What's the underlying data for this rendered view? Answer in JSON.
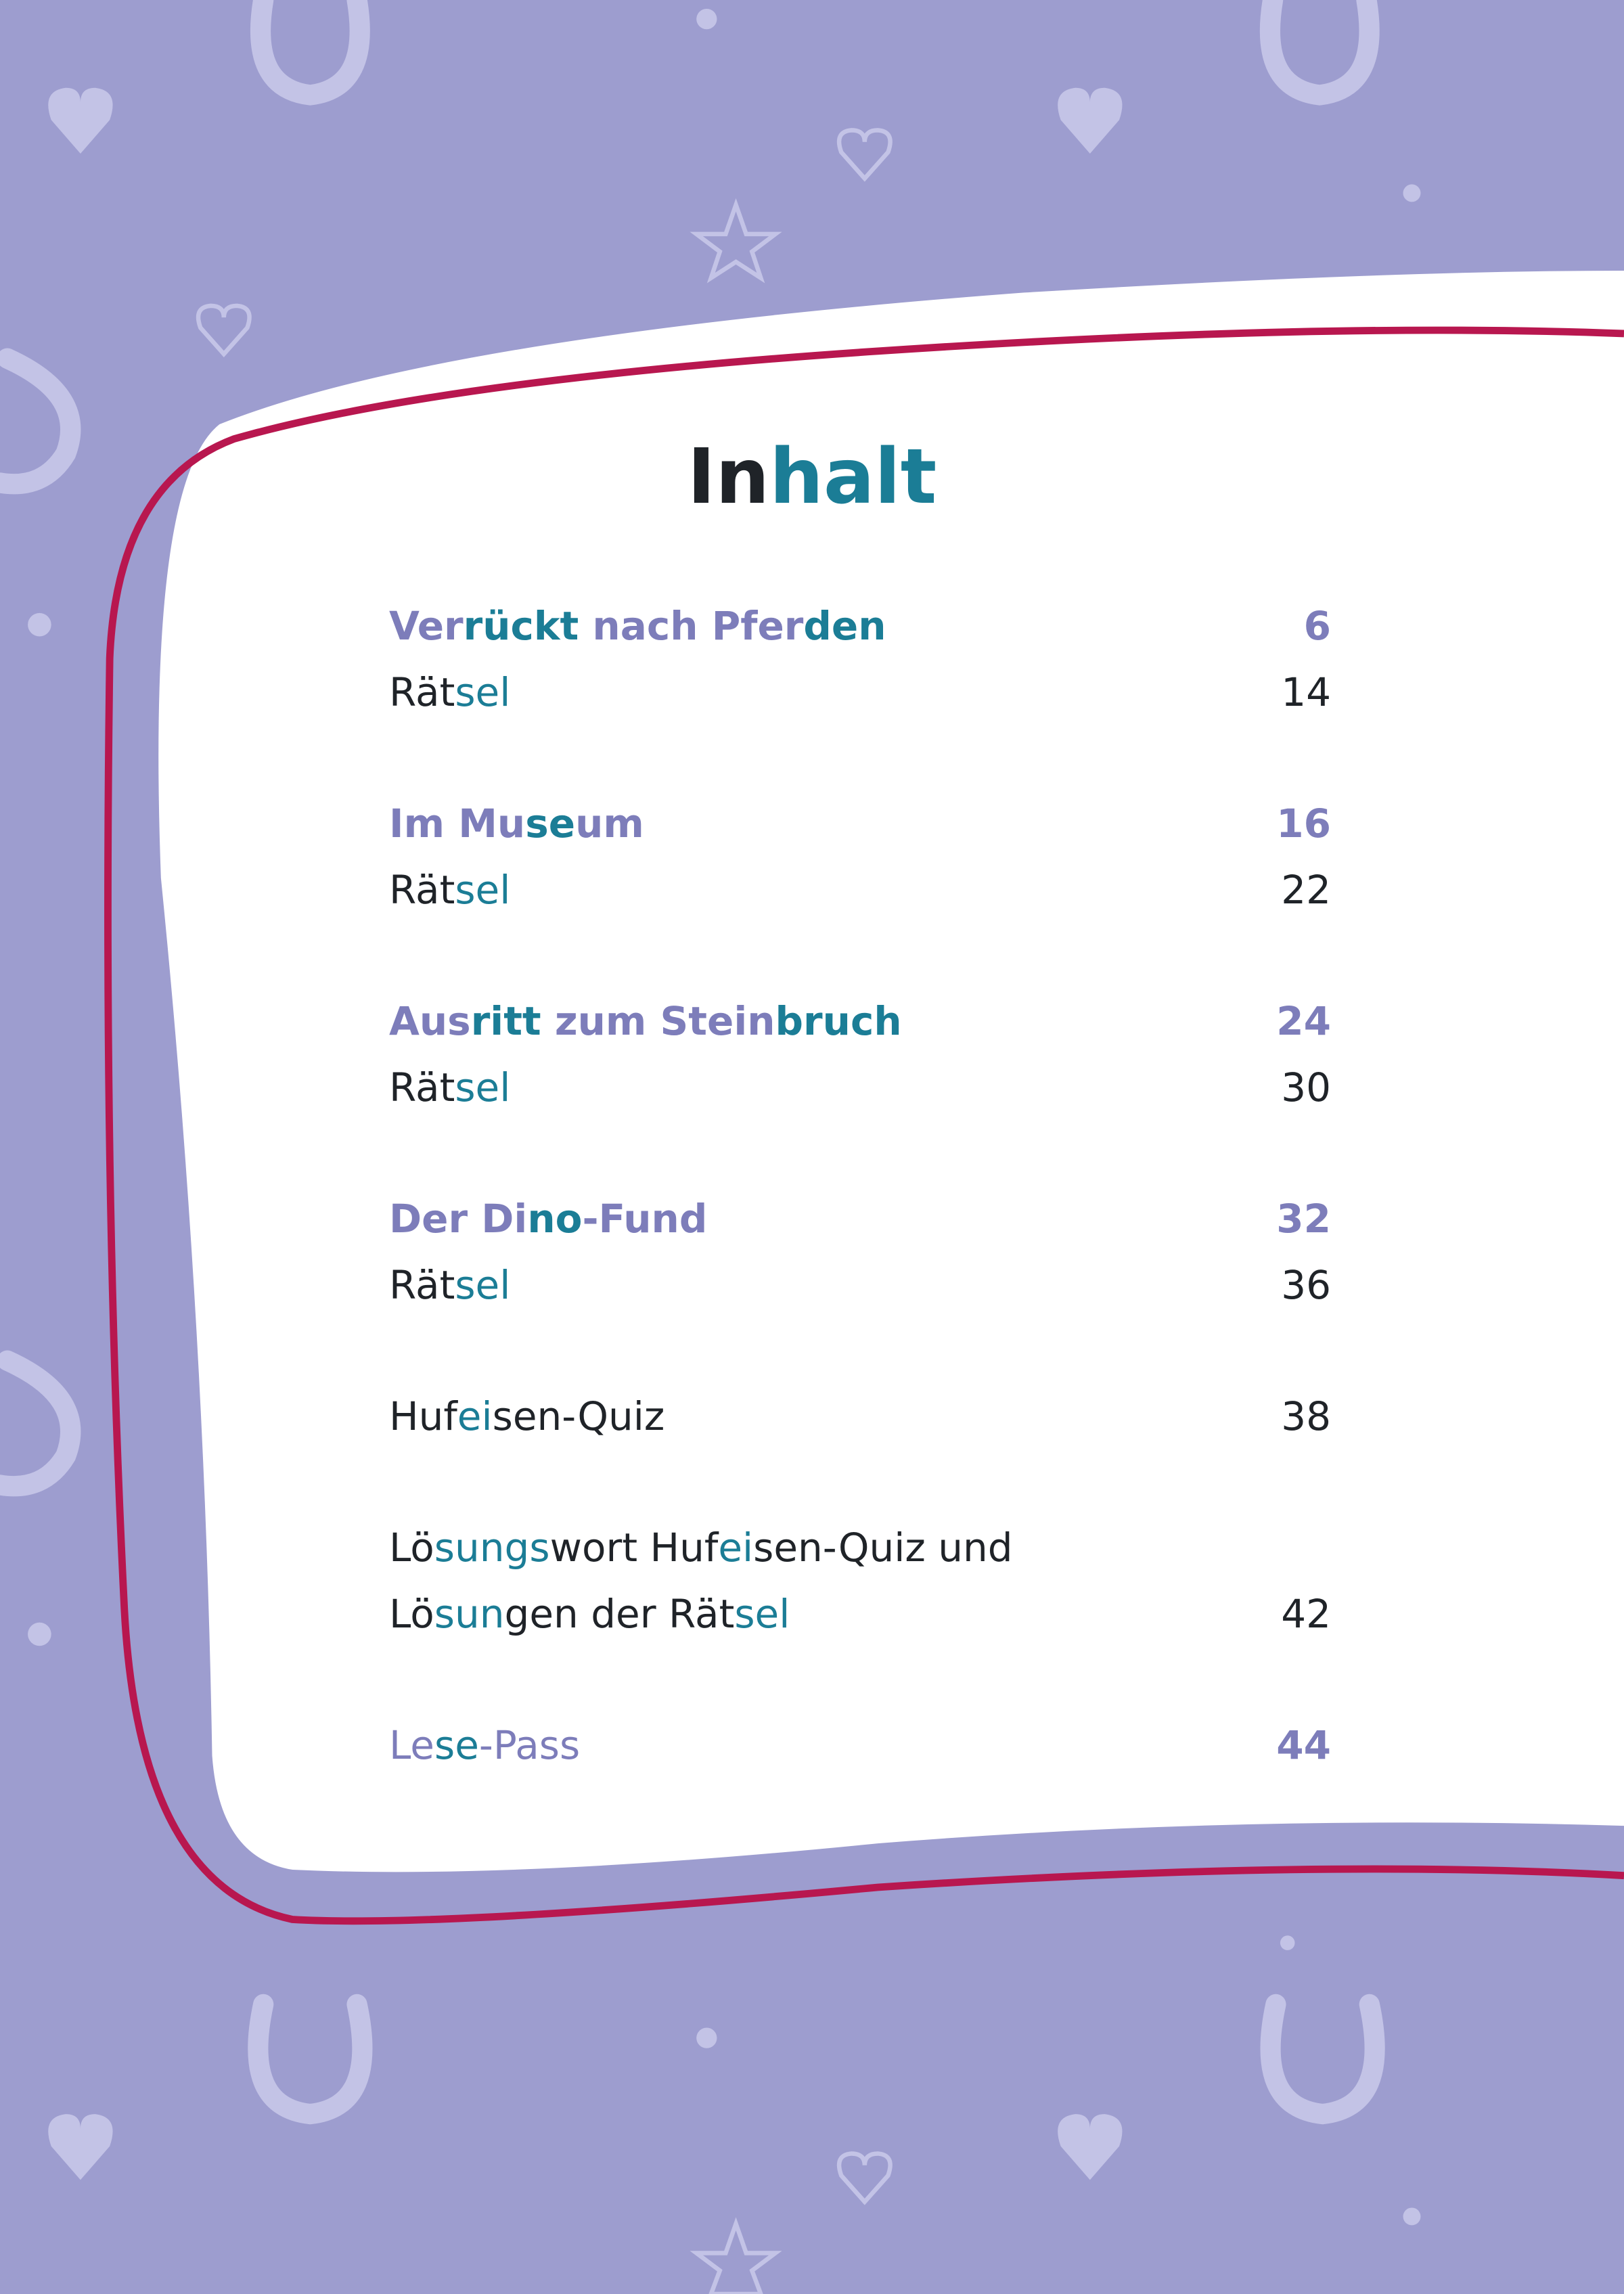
{
  "header": {
    "title": [
      {
        "text": "In",
        "tone": "dark"
      },
      {
        "text": "halt",
        "tone": "accent"
      }
    ]
  },
  "toc": {
    "groups": [
      {
        "entries": [
          {
            "style": "chapter",
            "lines": [
              [
                {
                  "text": "Ver",
                  "tone": "base"
                },
                {
                  "text": "rückt",
                  "tone": "accent"
                },
                {
                  "text": " nach Pfer",
                  "tone": "base"
                },
                {
                  "text": "den",
                  "tone": "accent"
                }
              ]
            ],
            "page": 6
          },
          {
            "style": "plain",
            "lines": [
              [
                {
                  "text": "Rät",
                  "tone": "base"
                },
                {
                  "text": "sel",
                  "tone": "accent"
                }
              ]
            ],
            "page": 14
          }
        ]
      },
      {
        "entries": [
          {
            "style": "chapter",
            "lines": [
              [
                {
                  "text": "Im Mu",
                  "tone": "base"
                },
                {
                  "text": "se",
                  "tone": "accent"
                },
                {
                  "text": "um",
                  "tone": "base"
                }
              ]
            ],
            "page": 16
          },
          {
            "style": "plain",
            "lines": [
              [
                {
                  "text": "Rät",
                  "tone": "base"
                },
                {
                  "text": "sel",
                  "tone": "accent"
                }
              ]
            ],
            "page": 22
          }
        ]
      },
      {
        "entries": [
          {
            "style": "chapter",
            "lines": [
              [
                {
                  "text": "Aus",
                  "tone": "base"
                },
                {
                  "text": "ritt",
                  "tone": "accent"
                },
                {
                  "text": " zum Stein",
                  "tone": "base"
                },
                {
                  "text": "bruch",
                  "tone": "accent"
                }
              ]
            ],
            "page": 24
          },
          {
            "style": "plain",
            "lines": [
              [
                {
                  "text": "Rät",
                  "tone": "base"
                },
                {
                  "text": "sel",
                  "tone": "accent"
                }
              ]
            ],
            "page": 30
          }
        ]
      },
      {
        "entries": [
          {
            "style": "chapter",
            "lines": [
              [
                {
                  "text": "Der Di",
                  "tone": "base"
                },
                {
                  "text": "no",
                  "tone": "accent"
                },
                {
                  "text": "-Fund",
                  "tone": "base"
                }
              ]
            ],
            "page": 32
          },
          {
            "style": "plain",
            "lines": [
              [
                {
                  "text": "Rät",
                  "tone": "base"
                },
                {
                  "text": "sel",
                  "tone": "accent"
                }
              ]
            ],
            "page": 36
          }
        ]
      },
      {
        "entries": [
          {
            "style": "plain",
            "lines": [
              [
                {
                  "text": "Huf",
                  "tone": "base"
                },
                {
                  "text": "ei",
                  "tone": "accent"
                },
                {
                  "text": "sen-Quiz",
                  "tone": "base"
                }
              ]
            ],
            "page": 38
          }
        ]
      },
      {
        "entries": [
          {
            "style": "plain",
            "lines": [
              [
                {
                  "text": "Lö",
                  "tone": "base"
                },
                {
                  "text": "sungs",
                  "tone": "accent"
                },
                {
                  "text": "wort Huf",
                  "tone": "base"
                },
                {
                  "text": "ei",
                  "tone": "accent"
                },
                {
                  "text": "sen-Quiz und",
                  "tone": "base"
                }
              ],
              [
                {
                  "text": "Lö",
                  "tone": "base"
                },
                {
                  "text": "sun",
                  "tone": "accent"
                },
                {
                  "text": "gen der Rät",
                  "tone": "base"
                },
                {
                  "text": "sel",
                  "tone": "accent"
                }
              ]
            ],
            "page": 42
          }
        ]
      },
      {
        "entries": [
          {
            "style": "light",
            "lines": [
              [
                {
                  "text": "Le",
                  "tone": "base"
                },
                {
                  "text": "se",
                  "tone": "accent"
                },
                {
                  "text": "-Pass",
                  "tone": "base"
                }
              ]
            ],
            "page": 44
          }
        ]
      }
    ]
  }
}
